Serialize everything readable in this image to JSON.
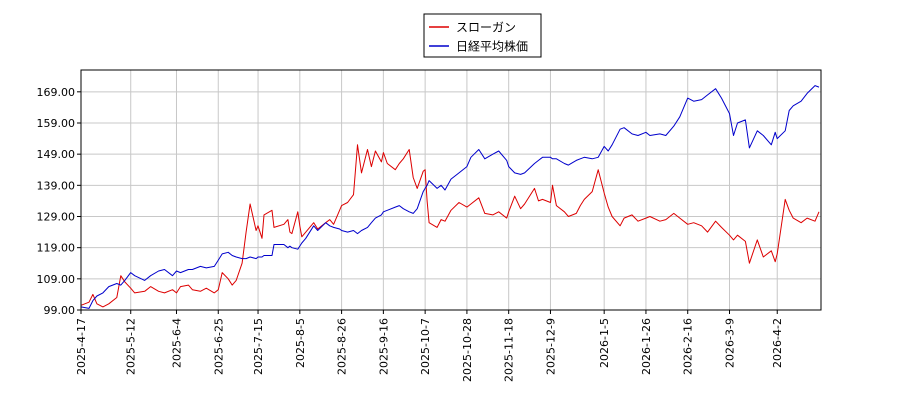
{
  "chart_data": {
    "type": "line",
    "title": "",
    "xlabel": "",
    "ylabel": "",
    "ylim": [
      99.0,
      176.0
    ],
    "grid": true,
    "legend_position": "top-center",
    "y_ticks": [
      "99.00",
      "109.00",
      "119.00",
      "129.00",
      "139.00",
      "149.00",
      "159.00",
      "169.00"
    ],
    "y_tick_values": [
      99,
      109,
      119,
      129,
      139,
      149,
      159,
      169
    ],
    "x_ticks": [
      "2025-4-17",
      "2025-5-12",
      "2025-6-4",
      "2025-6-25",
      "2025-7-15",
      "2025-8-5",
      "2025-8-26",
      "2025-9-16",
      "2025-10-7",
      "2025-10-28",
      "2025-11-18",
      "2025-12-9",
      "2026-1-5",
      "2026-1-26",
      "2026-2-16",
      "2026-3-9",
      "2026-4-2"
    ],
    "x_range": [
      "2025-4-17",
      "2026-4-24"
    ],
    "series": [
      {
        "name": "スローガン",
        "color": "#dd0000",
        "points": [
          [
            "2025-4-17",
            100.5
          ],
          [
            "2025-4-21",
            101.5
          ],
          [
            "2025-4-23",
            104.0
          ],
          [
            "2025-4-25",
            101.0
          ],
          [
            "2025-4-28",
            100.0
          ],
          [
            "2025-5-1",
            101.0
          ],
          [
            "2025-5-5",
            103.0
          ],
          [
            "2025-5-7",
            110.0
          ],
          [
            "2025-5-9",
            108.0
          ],
          [
            "2025-5-12",
            106.0
          ],
          [
            "2025-5-14",
            104.5
          ],
          [
            "2025-5-19",
            105.0
          ],
          [
            "2025-5-22",
            106.5
          ],
          [
            "2025-5-26",
            105.0
          ],
          [
            "2025-5-29",
            104.5
          ],
          [
            "2025-6-2",
            105.5
          ],
          [
            "2025-6-4",
            104.5
          ],
          [
            "2025-6-6",
            106.5
          ],
          [
            "2025-6-10",
            107.0
          ],
          [
            "2025-6-12",
            105.5
          ],
          [
            "2025-6-16",
            105.0
          ],
          [
            "2025-6-19",
            106.0
          ],
          [
            "2025-6-23",
            104.5
          ],
          [
            "2025-6-25",
            105.5
          ],
          [
            "2025-6-27",
            111.0
          ],
          [
            "2025-6-30",
            109.0
          ],
          [
            "2025-7-2",
            107.0
          ],
          [
            "2025-7-4",
            108.5
          ],
          [
            "2025-7-7",
            114.0
          ],
          [
            "2025-7-9",
            124.0
          ],
          [
            "2025-7-11",
            133.0
          ],
          [
            "2025-7-14",
            124.5
          ],
          [
            "2025-7-15",
            126.0
          ],
          [
            "2025-7-17",
            122.0
          ],
          [
            "2025-7-18",
            129.5
          ],
          [
            "2025-7-22",
            131.0
          ],
          [
            "2025-7-23",
            125.5
          ],
          [
            "2025-7-28",
            126.5
          ],
          [
            "2025-7-30",
            128.0
          ],
          [
            "2025-7-31",
            124.0
          ],
          [
            "2025-8-1",
            123.5
          ],
          [
            "2025-8-4",
            130.5
          ],
          [
            "2025-8-5",
            126.0
          ],
          [
            "2025-8-6",
            122.5
          ],
          [
            "2025-8-8",
            124.0
          ],
          [
            "2025-8-12",
            127.0
          ],
          [
            "2025-8-14",
            125.0
          ],
          [
            "2025-8-18",
            127.0
          ],
          [
            "2025-8-20",
            128.0
          ],
          [
            "2025-8-22",
            126.5
          ],
          [
            "2025-8-25",
            131.0
          ],
          [
            "2025-8-26",
            132.5
          ],
          [
            "2025-8-29",
            133.5
          ],
          [
            "2025-9-1",
            136.0
          ],
          [
            "2025-9-3",
            152.0
          ],
          [
            "2025-9-5",
            143.0
          ],
          [
            "2025-9-8",
            150.5
          ],
          [
            "2025-9-10",
            145.0
          ],
          [
            "2025-9-12",
            150.0
          ],
          [
            "2025-9-15",
            146.5
          ],
          [
            "2025-9-16",
            149.5
          ],
          [
            "2025-9-18",
            146.0
          ],
          [
            "2025-9-22",
            144.0
          ],
          [
            "2025-9-24",
            146.0
          ],
          [
            "2025-9-26",
            147.5
          ],
          [
            "2025-9-29",
            150.5
          ],
          [
            "2025-10-1",
            141.5
          ],
          [
            "2025-10-3",
            138.0
          ],
          [
            "2025-10-6",
            143.5
          ],
          [
            "2025-10-7",
            144.0
          ],
          [
            "2025-10-8",
            134.0
          ],
          [
            "2025-10-9",
            127.0
          ],
          [
            "2025-10-13",
            125.5
          ],
          [
            "2025-10-15",
            128.0
          ],
          [
            "2025-10-17",
            127.5
          ],
          [
            "2025-10-20",
            131.0
          ],
          [
            "2025-10-24",
            133.5
          ],
          [
            "2025-10-28",
            132.0
          ],
          [
            "2025-10-30",
            133.0
          ],
          [
            "2025-11-3",
            135.0
          ],
          [
            "2025-11-6",
            130.0
          ],
          [
            "2025-11-10",
            129.5
          ],
          [
            "2025-11-13",
            130.5
          ],
          [
            "2025-11-17",
            128.5
          ],
          [
            "2025-11-18",
            130.5
          ],
          [
            "2025-11-21",
            135.5
          ],
          [
            "2025-11-24",
            131.5
          ],
          [
            "2025-11-26",
            133.0
          ],
          [
            "2025-12-1",
            138.0
          ],
          [
            "2025-12-3",
            134.0
          ],
          [
            "2025-12-5",
            134.5
          ],
          [
            "2025-12-9",
            133.5
          ],
          [
            "2025-12-10",
            139.0
          ],
          [
            "2025-12-12",
            132.5
          ],
          [
            "2025-12-16",
            130.5
          ],
          [
            "2025-12-18",
            129.0
          ],
          [
            "2025-12-22",
            130.0
          ],
          [
            "2025-12-24",
            132.5
          ],
          [
            "2025-12-26",
            134.5
          ],
          [
            "2025-12-30",
            137.0
          ],
          [
            "2026-1-2",
            144.0
          ],
          [
            "2026-1-5",
            136.5
          ],
          [
            "2026-1-7",
            132.0
          ],
          [
            "2026-1-9",
            129.0
          ],
          [
            "2026-1-13",
            126.0
          ],
          [
            "2026-1-15",
            128.5
          ],
          [
            "2026-1-19",
            129.5
          ],
          [
            "2026-1-22",
            127.5
          ],
          [
            "2026-1-26",
            128.5
          ],
          [
            "2026-1-28",
            129.0
          ],
          [
            "2026-2-2",
            127.5
          ],
          [
            "2026-2-5",
            128.0
          ],
          [
            "2026-2-9",
            130.0
          ],
          [
            "2026-2-12",
            128.5
          ],
          [
            "2026-2-16",
            126.5
          ],
          [
            "2026-2-19",
            127.0
          ],
          [
            "2026-2-23",
            126.0
          ],
          [
            "2026-2-26",
            124.0
          ],
          [
            "2026-3-2",
            127.5
          ],
          [
            "2026-3-5",
            125.5
          ],
          [
            "2026-3-9",
            123.0
          ],
          [
            "2026-3-11",
            121.5
          ],
          [
            "2026-3-13",
            123.0
          ],
          [
            "2026-3-17",
            121.0
          ],
          [
            "2026-3-19",
            114.0
          ],
          [
            "2026-3-23",
            121.5
          ],
          [
            "2026-3-26",
            116.0
          ],
          [
            "2026-3-30",
            118.0
          ],
          [
            "2026-4-1",
            114.5
          ],
          [
            "2026-4-2",
            117.0
          ],
          [
            "2026-4-6",
            134.5
          ],
          [
            "2026-4-8",
            131.0
          ],
          [
            "2026-4-10",
            128.5
          ],
          [
            "2026-4-14",
            127.0
          ],
          [
            "2026-4-17",
            128.5
          ],
          [
            "2026-4-21",
            127.5
          ],
          [
            "2026-4-23",
            130.5
          ]
        ]
      },
      {
        "name": "日経平均株価",
        "color": "#0000cc",
        "points": [
          [
            "2025-4-17",
            100.0
          ],
          [
            "2025-4-21",
            99.5
          ],
          [
            "2025-4-23",
            102.0
          ],
          [
            "2025-4-25",
            103.5
          ],
          [
            "2025-4-28",
            104.5
          ],
          [
            "2025-5-1",
            106.5
          ],
          [
            "2025-5-5",
            107.5
          ],
          [
            "2025-5-7",
            107.0
          ],
          [
            "2025-5-9",
            108.5
          ],
          [
            "2025-5-12",
            111.0
          ],
          [
            "2025-5-14",
            110.0
          ],
          [
            "2025-5-19",
            108.5
          ],
          [
            "2025-5-22",
            110.0
          ],
          [
            "2025-5-26",
            111.5
          ],
          [
            "2025-5-29",
            112.0
          ],
          [
            "2025-6-2",
            110.0
          ],
          [
            "2025-6-4",
            111.5
          ],
          [
            "2025-6-6",
            111.0
          ],
          [
            "2025-6-10",
            112.0
          ],
          [
            "2025-6-12",
            112.0
          ],
          [
            "2025-6-16",
            113.0
          ],
          [
            "2025-6-19",
            112.5
          ],
          [
            "2025-6-23",
            113.0
          ],
          [
            "2025-6-25",
            115.0
          ],
          [
            "2025-6-27",
            117.0
          ],
          [
            "2025-6-30",
            117.5
          ],
          [
            "2025-7-2",
            116.5
          ],
          [
            "2025-7-4",
            116.0
          ],
          [
            "2025-7-7",
            115.5
          ],
          [
            "2025-7-9",
            115.5
          ],
          [
            "2025-7-11",
            116.0
          ],
          [
            "2025-7-14",
            115.5
          ],
          [
            "2025-7-15",
            116.0
          ],
          [
            "2025-7-17",
            116.0
          ],
          [
            "2025-7-18",
            116.5
          ],
          [
            "2025-7-22",
            116.5
          ],
          [
            "2025-7-23",
            120.0
          ],
          [
            "2025-7-28",
            120.0
          ],
          [
            "2025-7-30",
            119.0
          ],
          [
            "2025-7-31",
            119.5
          ],
          [
            "2025-8-1",
            119.0
          ],
          [
            "2025-8-4",
            118.5
          ],
          [
            "2025-8-5",
            119.5
          ],
          [
            "2025-8-6",
            120.5
          ],
          [
            "2025-8-8",
            122.0
          ],
          [
            "2025-8-12",
            126.0
          ],
          [
            "2025-8-14",
            124.5
          ],
          [
            "2025-8-18",
            127.0
          ],
          [
            "2025-8-20",
            126.0
          ],
          [
            "2025-8-22",
            125.5
          ],
          [
            "2025-8-25",
            125.0
          ],
          [
            "2025-8-26",
            124.5
          ],
          [
            "2025-8-29",
            124.0
          ],
          [
            "2025-9-1",
            124.5
          ],
          [
            "2025-9-3",
            123.5
          ],
          [
            "2025-9-5",
            124.5
          ],
          [
            "2025-9-8",
            125.5
          ],
          [
            "2025-9-10",
            127.0
          ],
          [
            "2025-9-12",
            128.5
          ],
          [
            "2025-9-15",
            129.5
          ],
          [
            "2025-9-16",
            130.5
          ],
          [
            "2025-9-18",
            131.0
          ],
          [
            "2025-9-22",
            132.0
          ],
          [
            "2025-9-24",
            132.5
          ],
          [
            "2025-9-26",
            131.5
          ],
          [
            "2025-9-29",
            130.5
          ],
          [
            "2025-10-1",
            130.0
          ],
          [
            "2025-10-3",
            131.5
          ],
          [
            "2025-10-6",
            137.0
          ],
          [
            "2025-10-7",
            138.0
          ],
          [
            "2025-10-8",
            139.0
          ],
          [
            "2025-10-9",
            140.5
          ],
          [
            "2025-10-13",
            138.0
          ],
          [
            "2025-10-15",
            139.0
          ],
          [
            "2025-10-17",
            137.5
          ],
          [
            "2025-10-20",
            141.0
          ],
          [
            "2025-10-24",
            143.0
          ],
          [
            "2025-10-28",
            145.0
          ],
          [
            "2025-10-30",
            148.0
          ],
          [
            "2025-11-3",
            150.5
          ],
          [
            "2025-11-6",
            147.5
          ],
          [
            "2025-11-10",
            149.0
          ],
          [
            "2025-11-13",
            150.0
          ],
          [
            "2025-11-17",
            147.0
          ],
          [
            "2025-11-18",
            145.0
          ],
          [
            "2025-11-21",
            143.0
          ],
          [
            "2025-11-24",
            142.5
          ],
          [
            "2025-11-26",
            143.0
          ],
          [
            "2025-12-1",
            146.0
          ],
          [
            "2025-12-3",
            147.0
          ],
          [
            "2025-12-5",
            148.0
          ],
          [
            "2025-12-9",
            148.0
          ],
          [
            "2025-12-10",
            147.5
          ],
          [
            "2025-12-12",
            147.5
          ],
          [
            "2025-12-16",
            146.0
          ],
          [
            "2025-12-18",
            145.5
          ],
          [
            "2025-12-22",
            147.0
          ],
          [
            "2025-12-24",
            147.5
          ],
          [
            "2025-12-26",
            148.0
          ],
          [
            "2025-12-30",
            147.5
          ],
          [
            "2026-1-2",
            148.0
          ],
          [
            "2026-1-5",
            151.5
          ],
          [
            "2026-1-7",
            150.0
          ],
          [
            "2026-1-9",
            152.0
          ],
          [
            "2026-1-13",
            157.0
          ],
          [
            "2026-1-15",
            157.5
          ],
          [
            "2026-1-19",
            155.5
          ],
          [
            "2026-1-22",
            155.0
          ],
          [
            "2026-1-26",
            156.0
          ],
          [
            "2026-1-28",
            155.0
          ],
          [
            "2026-2-2",
            155.5
          ],
          [
            "2026-2-5",
            155.0
          ],
          [
            "2026-2-9",
            158.0
          ],
          [
            "2026-2-12",
            161.0
          ],
          [
            "2026-2-16",
            167.0
          ],
          [
            "2026-2-19",
            166.0
          ],
          [
            "2026-2-23",
            166.5
          ],
          [
            "2026-2-26",
            168.0
          ],
          [
            "2026-3-2",
            170.0
          ],
          [
            "2026-3-5",
            167.0
          ],
          [
            "2026-3-9",
            162.0
          ],
          [
            "2026-3-11",
            155.0
          ],
          [
            "2026-3-13",
            159.0
          ],
          [
            "2026-3-17",
            160.0
          ],
          [
            "2026-3-19",
            151.0
          ],
          [
            "2026-3-23",
            156.5
          ],
          [
            "2026-3-26",
            155.0
          ],
          [
            "2026-3-30",
            152.0
          ],
          [
            "2026-4-1",
            156.0
          ],
          [
            "2026-4-2",
            154.0
          ],
          [
            "2026-4-6",
            156.5
          ],
          [
            "2026-4-8",
            163.0
          ],
          [
            "2026-4-10",
            164.5
          ],
          [
            "2026-4-14",
            166.0
          ],
          [
            "2026-4-17",
            168.5
          ],
          [
            "2026-4-21",
            171.0
          ],
          [
            "2026-4-23",
            170.5
          ]
        ]
      }
    ]
  }
}
